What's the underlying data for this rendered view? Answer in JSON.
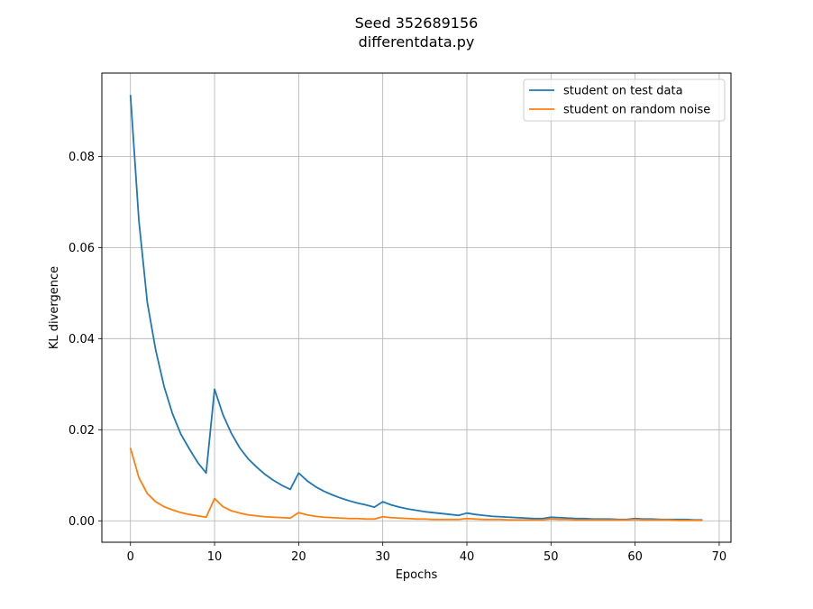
{
  "chart_data": {
    "type": "line",
    "title": "Seed 352689156",
    "subtitle": "differentdata.py",
    "xlabel": "Epochs",
    "ylabel": "KL divergence",
    "xlim": [
      -3.4,
      71.4
    ],
    "ylim": [
      -0.0047,
      0.0983
    ],
    "x_ticks": [
      0,
      10,
      20,
      30,
      40,
      50,
      60,
      70
    ],
    "y_ticks": [
      0.0,
      0.02,
      0.04,
      0.06,
      0.08
    ],
    "y_tick_labels": [
      "0.00",
      "0.02",
      "0.04",
      "0.06",
      "0.08"
    ],
    "grid": true,
    "legend_position": "top-right",
    "series": [
      {
        "name": "student on test data",
        "color": "#1f77b4",
        "x": [
          0,
          1,
          2,
          3,
          4,
          5,
          6,
          7,
          8,
          9,
          10,
          11,
          12,
          13,
          14,
          15,
          16,
          17,
          18,
          19,
          20,
          21,
          22,
          23,
          24,
          25,
          26,
          27,
          28,
          29,
          30,
          31,
          32,
          33,
          34,
          35,
          36,
          37,
          38,
          39,
          40,
          41,
          42,
          43,
          44,
          45,
          46,
          47,
          48,
          49,
          50,
          51,
          52,
          53,
          54,
          55,
          56,
          57,
          58,
          59,
          60,
          61,
          62,
          63,
          64,
          65,
          66,
          67,
          68
        ],
        "y": [
          0.0935,
          0.066,
          0.048,
          0.0375,
          0.0295,
          0.0235,
          0.019,
          0.0158,
          0.0128,
          0.0105,
          0.0289,
          0.0233,
          0.0192,
          0.016,
          0.0136,
          0.0118,
          0.0102,
          0.0089,
          0.0078,
          0.0069,
          0.0105,
          0.0088,
          0.0075,
          0.0065,
          0.0057,
          0.005,
          0.0044,
          0.0039,
          0.0035,
          0.003,
          0.0042,
          0.0035,
          0.003,
          0.0026,
          0.0023,
          0.002,
          0.0018,
          0.0016,
          0.0014,
          0.0012,
          0.0017,
          0.0014,
          0.0012,
          0.001,
          0.0009,
          0.0008,
          0.0007,
          0.0006,
          0.0005,
          0.0005,
          0.0008,
          0.0007,
          0.0006,
          0.0005,
          0.0005,
          0.0004,
          0.0004,
          0.0004,
          0.0003,
          0.0003,
          0.0005,
          0.0004,
          0.0004,
          0.0003,
          0.0003,
          0.0003,
          0.0003,
          0.0002,
          0.0002
        ]
      },
      {
        "name": "student on random noise",
        "color": "#ff7f0e",
        "x": [
          0,
          1,
          2,
          3,
          4,
          5,
          6,
          7,
          8,
          9,
          10,
          11,
          12,
          13,
          14,
          15,
          16,
          17,
          18,
          19,
          20,
          21,
          22,
          23,
          24,
          25,
          26,
          27,
          28,
          29,
          30,
          31,
          32,
          33,
          34,
          35,
          36,
          37,
          38,
          39,
          40,
          41,
          42,
          43,
          44,
          45,
          46,
          47,
          48,
          49,
          50,
          51,
          52,
          53,
          54,
          55,
          56,
          57,
          58,
          59,
          60,
          61,
          62,
          63,
          64,
          65,
          66,
          67,
          68
        ],
        "y": [
          0.016,
          0.0095,
          0.006,
          0.0042,
          0.0031,
          0.0024,
          0.0018,
          0.0014,
          0.0011,
          0.0008,
          0.0049,
          0.0031,
          0.0022,
          0.0017,
          0.0013,
          0.0011,
          0.0009,
          0.0008,
          0.0007,
          0.0006,
          0.0018,
          0.0013,
          0.001,
          0.0008,
          0.0007,
          0.0006,
          0.0005,
          0.0005,
          0.0004,
          0.0004,
          0.0009,
          0.0007,
          0.0006,
          0.0005,
          0.0004,
          0.0004,
          0.0003,
          0.0003,
          0.0003,
          0.0003,
          0.0005,
          0.0004,
          0.0003,
          0.0003,
          0.0003,
          0.0002,
          0.0002,
          0.0002,
          0.0002,
          0.0002,
          0.0004,
          0.0003,
          0.0003,
          0.0002,
          0.0002,
          0.0002,
          0.0002,
          0.0002,
          0.0002,
          0.0002,
          0.0003,
          0.0002,
          0.0002,
          0.0002,
          0.0002,
          0.0001,
          0.0001,
          0.0001,
          0.0001
        ]
      }
    ]
  }
}
